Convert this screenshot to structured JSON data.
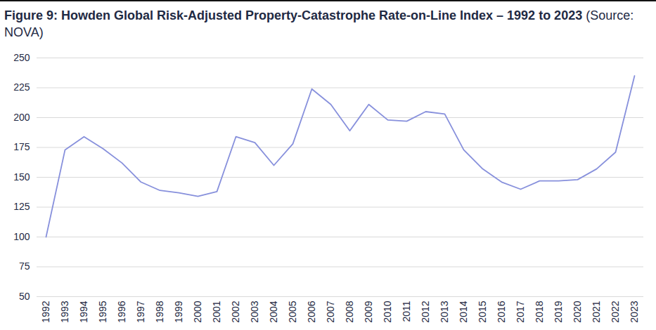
{
  "chart_data": {
    "type": "line",
    "title": "Figure 9: Howden Global Risk-Adjusted Property-Catastrophe Rate-on-Line Index – 1992 to 2023",
    "subtitle": "(Source: NOVA)",
    "categories": [
      "1992",
      "1993",
      "1994",
      "1995",
      "1996",
      "1997",
      "1998",
      "1999",
      "2000",
      "2001",
      "2002",
      "2003",
      "2004",
      "2005",
      "2006",
      "2007",
      "2008",
      "2009",
      "2010",
      "2011",
      "2012",
      "2013",
      "2014",
      "2015",
      "2016",
      "2017",
      "2018",
      "2019",
      "2020",
      "2021",
      "2022",
      "2023"
    ],
    "values": [
      100,
      173,
      184,
      174,
      162,
      146,
      139,
      137,
      134,
      138,
      184,
      179,
      160,
      178,
      224,
      211,
      189,
      211,
      198,
      197,
      205,
      203,
      173,
      157,
      146,
      140,
      147,
      147,
      148,
      157,
      171,
      235
    ],
    "color": "#8790dc",
    "ylim": [
      50,
      250
    ],
    "yticks": [
      50,
      75,
      100,
      125,
      150,
      175,
      200,
      225,
      250
    ],
    "grid": true
  }
}
